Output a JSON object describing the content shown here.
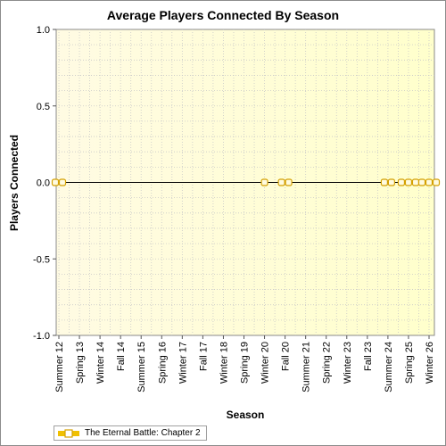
{
  "chart_data": {
    "type": "line",
    "title": "Average Players Connected By Season",
    "xlabel": "Season",
    "ylabel": "Players Connected",
    "ylim": [
      -1.0,
      1.0
    ],
    "yticks": [
      "1.0",
      "0.5",
      "0.0",
      "-0.5",
      "-1.0"
    ],
    "x_tick_labels": [
      "Summer 12",
      "Spring 13",
      "Winter 14",
      "Fall 14",
      "Summer 15",
      "Spring 16",
      "Winter 17",
      "Fall 17",
      "Winter 18",
      "Spring 19",
      "Winter 20",
      "Fall 20",
      "Summer 21",
      "Spring 22",
      "Winter 23",
      "Fall 23",
      "Summer 24",
      "Spring 25",
      "Winter 26"
    ],
    "grid": true,
    "legend_position": "bottom-left",
    "series": [
      {
        "name": "The Eternal Battle: Chapter 2",
        "color": "#f0c000",
        "points": [
          {
            "x": "Summer 12",
            "y": 0
          },
          {
            "x": "Summer 12",
            "y": 0
          },
          {
            "x": "Winter 20",
            "y": 0
          },
          {
            "x": "Fall 20",
            "y": 0
          },
          {
            "x": "Fall 20",
            "y": 0
          },
          {
            "x": "Summer 24",
            "y": 0
          },
          {
            "x": "Summer 24",
            "y": 0
          },
          {
            "x": "Spring 25",
            "y": 0
          },
          {
            "x": "Spring 25",
            "y": 0
          },
          {
            "x": "Spring 25",
            "y": 0
          },
          {
            "x": "Winter 26",
            "y": 0
          },
          {
            "x": "Winter 26",
            "y": 0
          },
          {
            "x": "Winter 26",
            "y": 0
          }
        ]
      }
    ]
  }
}
